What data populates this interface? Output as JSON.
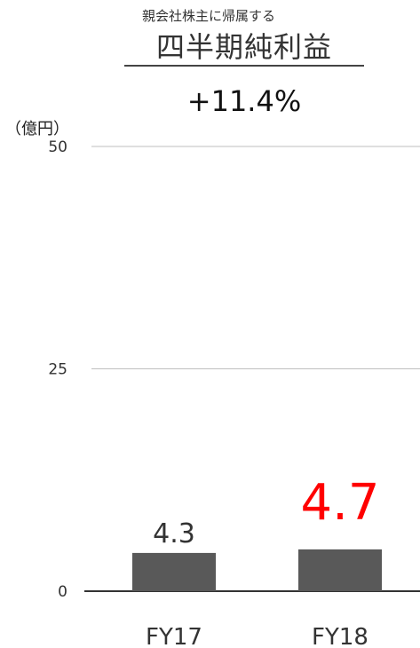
{
  "header": {
    "subtitle": "親会社株主に帰属する",
    "title": "四半期純利益",
    "growth": "+11.4%"
  },
  "colors": {
    "bar": "#595959",
    "highlight_label": "#ff0000",
    "label": "#333333",
    "grid": "#bfbfbf",
    "axis": "#333333"
  },
  "chart_data": {
    "type": "bar",
    "title": "四半期純利益",
    "subtitle": "親会社株主に帰属する",
    "unit_label": "（億円）",
    "categories": [
      "FY17",
      "FY18"
    ],
    "values": [
      4.3,
      4.7
    ],
    "data_labels": [
      "4.3",
      "4.7"
    ],
    "highlight_index": 1,
    "ylim": [
      0,
      50
    ],
    "yticks": [
      0,
      25,
      50
    ],
    "grid": true,
    "legend": "none"
  }
}
